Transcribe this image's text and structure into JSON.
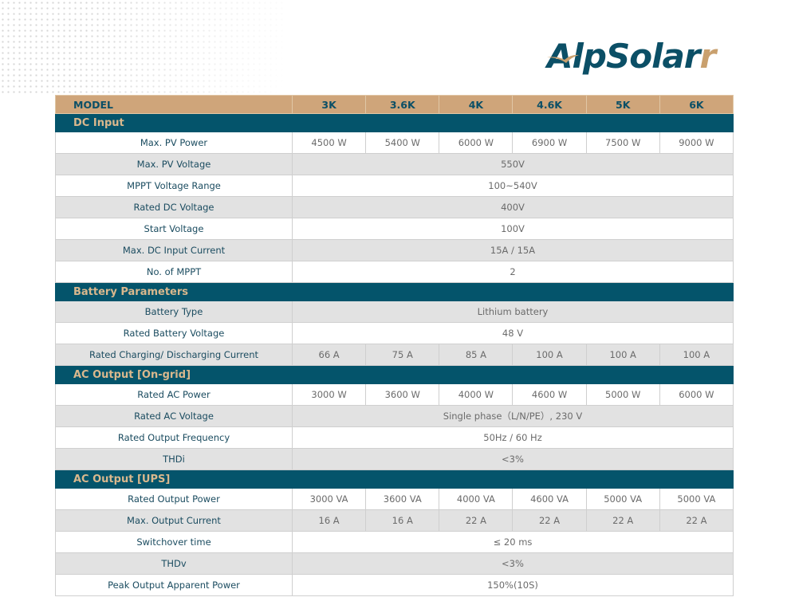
{
  "brand": {
    "logo_text": "AlpSolar",
    "logo_suffix": "r",
    "colors": {
      "teal": "#04546b",
      "tan": "#cfa57a"
    }
  },
  "table": {
    "header": {
      "label": "MODEL",
      "models": [
        "3K",
        "3.6K",
        "4K",
        "4.6K",
        "5K",
        "6K"
      ]
    },
    "sections": [
      {
        "title": "DC Input",
        "rows": [
          {
            "label": "Max. PV Power",
            "values": [
              "4500 W",
              "5400 W",
              "6000 W",
              "6900 W",
              "7500 W",
              "9000 W"
            ]
          },
          {
            "label": "Max. PV Voltage",
            "value": "550V"
          },
          {
            "label": "MPPT Voltage Range",
            "value": "100~540V"
          },
          {
            "label": "Rated DC Voltage",
            "value": "400V"
          },
          {
            "label": "Start Voltage",
            "value": "100V"
          },
          {
            "label": "Max. DC Input Current",
            "value": "15A / 15A"
          },
          {
            "label": "No. of MPPT",
            "value": "2"
          }
        ]
      },
      {
        "title": "Battery Parameters",
        "rows": [
          {
            "label": "Battery Type",
            "value": "Lithium battery"
          },
          {
            "label": "Rated Battery Voltage",
            "value": "48 V"
          },
          {
            "label": "Rated Charging/ Discharging Current",
            "values": [
              "66 A",
              "75 A",
              "85 A",
              "100 A",
              "100 A",
              "100 A"
            ]
          }
        ]
      },
      {
        "title": "AC Output [On-grid]",
        "rows": [
          {
            "label": "Rated AC Power",
            "values": [
              "3000 W",
              "3600 W",
              "4000 W",
              "4600 W",
              "5000 W",
              "6000 W"
            ]
          },
          {
            "label": "Rated AC Voltage",
            "value": "Single phase（L/N/PE）, 230 V"
          },
          {
            "label": "Rated Output Frequency",
            "value": "50Hz / 60 Hz"
          },
          {
            "label": "THDi",
            "value": "<3%"
          }
        ]
      },
      {
        "title": "AC Output [UPS]",
        "rows": [
          {
            "label": "Rated Output Power",
            "values": [
              "3000 VA",
              "3600 VA",
              "4000 VA",
              "4600 VA",
              "5000 VA",
              "5000 VA"
            ]
          },
          {
            "label": "Max. Output Current",
            "values": [
              "16 A",
              "16 A",
              "22 A",
              "22 A",
              "22 A",
              "22 A"
            ]
          },
          {
            "label": "Switchover time",
            "value": "≤ 20 ms"
          },
          {
            "label": "THDv",
            "value": "<3%"
          },
          {
            "label": "Peak Output Apparent Power",
            "value": "150%(10S)"
          }
        ]
      }
    ]
  }
}
